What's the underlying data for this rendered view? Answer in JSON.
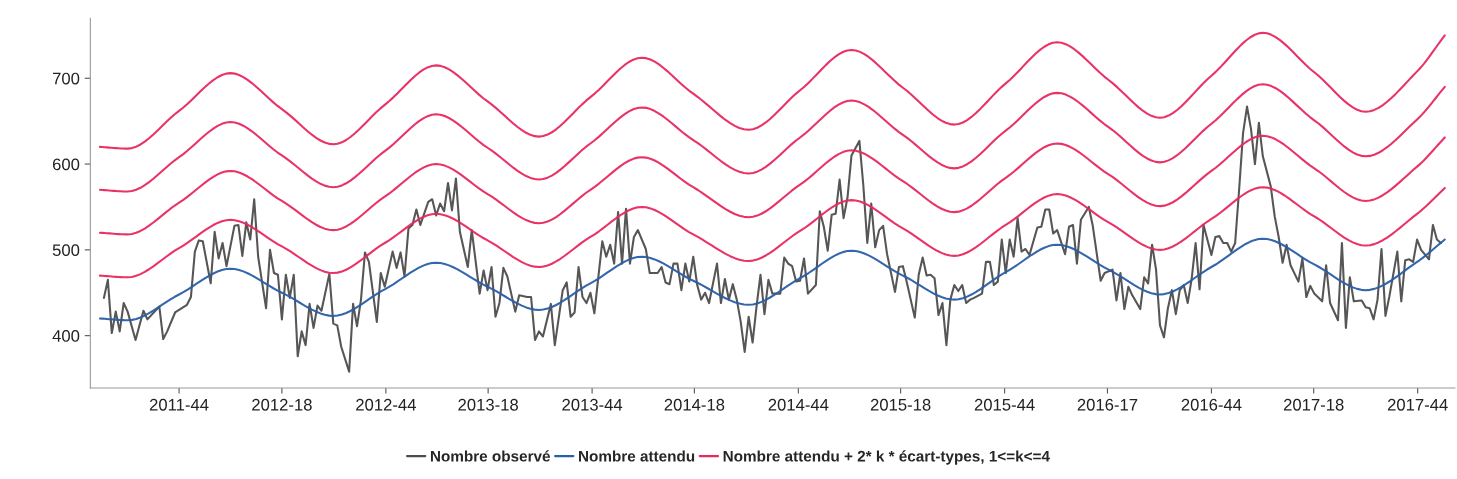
{
  "chart_data": {
    "type": "line",
    "xlim": [
      "2011-05-28",
      "2018-01-06"
    ],
    "ylim": [
      339,
      770
    ],
    "xticks": [
      {
        "value": "2011-11-01",
        "label": "2011-44"
      },
      {
        "value": "2012-05-01",
        "label": "2012-18"
      },
      {
        "value": "2012-11-01",
        "label": "2012-44"
      },
      {
        "value": "2013-05-01",
        "label": "2013-18"
      },
      {
        "value": "2013-11-01",
        "label": "2013-44"
      },
      {
        "value": "2014-05-01",
        "label": "2014-18"
      },
      {
        "value": "2014-11-01",
        "label": "2014-44"
      },
      {
        "value": "2015-05-01",
        "label": "2015-18"
      },
      {
        "value": "2015-11-01",
        "label": "2015-44"
      },
      {
        "value": "2016-05-01",
        "label": "2016-17"
      },
      {
        "value": "2016-11-01",
        "label": "2016-44"
      },
      {
        "value": "2017-05-01",
        "label": "2017-18"
      },
      {
        "value": "2017-11-01",
        "label": "2017-44"
      }
    ],
    "yticks": [
      400,
      500,
      600,
      700
    ],
    "grid": false,
    "legend": "bottom",
    "marker": "none",
    "line_style": "solid",
    "series": [
      {
        "name": "Nombre observé",
        "color": "#4d4d4d",
        "x": [
          "2011-06-21",
          "2011-06-28",
          "2011-07-05",
          "2011-07-12",
          "2011-07-19",
          "2011-07-26",
          "2011-08-02",
          "2011-08-16",
          "2011-08-30",
          "2011-09-06",
          "2011-09-27",
          "2011-10-04",
          "2011-10-11",
          "2011-10-25",
          "2011-11-15",
          "2011-11-22",
          "2011-11-29",
          "2011-12-06",
          "2011-12-13",
          "2011-12-27",
          "2012-01-03",
          "2012-01-10",
          "2012-01-17",
          "2012-01-24",
          "2012-02-07",
          "2012-02-14",
          "2012-02-21",
          "2012-02-28",
          "2012-03-06",
          "2012-03-13",
          "2012-03-20",
          "2012-04-03",
          "2012-04-10",
          "2012-04-17",
          "2012-04-24",
          "2012-05-01",
          "2012-05-08",
          "2012-05-15",
          "2012-05-22",
          "2012-05-29",
          "2012-06-05",
          "2012-06-12",
          "2012-06-19",
          "2012-06-26",
          "2012-07-03",
          "2012-07-10",
          "2012-07-24",
          "2012-07-31",
          "2012-08-07",
          "2012-08-14",
          "2012-08-28",
          "2012-09-04",
          "2012-09-11",
          "2012-09-18",
          "2012-09-25",
          "2012-10-02",
          "2012-10-16",
          "2012-10-23",
          "2012-10-30",
          "2012-11-13",
          "2012-11-20",
          "2012-11-27",
          "2012-12-04",
          "2012-12-11",
          "2012-12-18",
          "2012-12-25",
          "2013-01-01",
          "2013-01-15",
          "2013-01-22",
          "2013-01-29",
          "2013-02-05",
          "2013-02-12",
          "2013-02-19",
          "2013-02-26",
          "2013-03-05",
          "2013-03-12",
          "2013-03-26",
          "2013-04-02",
          "2013-04-16",
          "2013-04-23",
          "2013-04-30",
          "2013-05-07",
          "2013-05-14",
          "2013-05-21",
          "2013-05-28",
          "2013-06-04",
          "2013-06-18",
          "2013-06-25",
          "2013-07-09",
          "2013-07-16",
          "2013-07-23",
          "2013-07-30",
          "2013-08-06",
          "2013-08-20",
          "2013-08-27",
          "2013-09-10",
          "2013-09-17",
          "2013-09-24",
          "2013-10-01",
          "2013-10-08",
          "2013-10-15",
          "2013-10-22",
          "2013-10-29",
          "2013-11-05",
          "2013-11-19",
          "2013-11-26",
          "2013-12-03",
          "2013-12-10",
          "2013-12-17",
          "2013-12-24",
          "2013-12-31",
          "2014-01-07",
          "2014-01-14",
          "2014-01-21",
          "2014-02-04",
          "2014-02-11",
          "2014-02-25",
          "2014-03-04",
          "2014-03-11",
          "2014-03-18",
          "2014-03-25",
          "2014-04-01",
          "2014-04-08",
          "2014-04-15",
          "2014-04-22",
          "2014-04-29",
          "2014-05-06",
          "2014-05-13",
          "2014-05-20",
          "2014-05-27",
          "2014-06-10",
          "2014-06-17",
          "2014-06-24",
          "2014-07-01",
          "2014-07-08",
          "2014-07-15",
          "2014-07-22",
          "2014-07-29",
          "2014-08-05",
          "2014-08-12",
          "2014-08-19",
          "2014-08-26",
          "2014-09-02",
          "2014-09-09",
          "2014-09-16",
          "2014-09-30",
          "2014-10-07",
          "2014-10-14",
          "2014-10-21",
          "2014-10-28",
          "2014-11-04",
          "2014-11-11",
          "2014-11-18",
          "2014-12-02",
          "2014-12-09",
          "2014-12-16",
          "2014-12-23",
          "2014-12-30",
          "2015-01-06",
          "2015-01-13",
          "2015-01-20",
          "2015-01-27",
          "2015-02-03",
          "2015-02-17",
          "2015-02-24",
          "2015-03-03",
          "2015-03-10",
          "2015-03-17",
          "2015-03-24",
          "2015-03-31",
          "2015-04-07",
          "2015-04-21",
          "2015-04-28",
          "2015-05-05",
          "2015-05-12",
          "2015-05-26",
          "2015-06-02",
          "2015-06-09",
          "2015-06-16",
          "2015-06-23",
          "2015-06-30",
          "2015-07-07",
          "2015-07-14",
          "2015-07-21",
          "2015-07-28",
          "2015-08-04",
          "2015-08-11",
          "2015-08-18",
          "2015-08-25",
          "2015-09-01",
          "2015-09-08",
          "2015-09-22",
          "2015-09-29",
          "2015-10-06",
          "2015-10-13",
          "2015-10-20",
          "2015-10-27",
          "2015-11-03",
          "2015-11-10",
          "2015-11-17",
          "2015-11-24",
          "2015-12-01",
          "2015-12-08",
          "2015-12-15",
          "2015-12-29",
          "2016-01-05",
          "2016-01-12",
          "2016-01-19",
          "2016-01-26",
          "2016-02-02",
          "2016-02-16",
          "2016-02-23",
          "2016-03-01",
          "2016-03-08",
          "2016-03-15",
          "2016-03-29",
          "2016-04-05",
          "2016-04-19",
          "2016-04-26",
          "2016-05-10",
          "2016-05-17",
          "2016-05-24",
          "2016-05-31",
          "2016-06-07",
          "2016-06-14",
          "2016-06-28",
          "2016-07-05",
          "2016-07-12",
          "2016-07-19",
          "2016-07-26",
          "2016-08-02",
          "2016-08-09",
          "2016-08-16",
          "2016-08-23",
          "2016-08-30",
          "2016-09-06",
          "2016-09-13",
          "2016-09-20",
          "2016-09-27",
          "2016-10-04",
          "2016-10-11",
          "2016-10-18",
          "2016-11-01",
          "2016-11-08",
          "2016-11-15",
          "2016-11-22",
          "2016-11-29",
          "2016-12-06",
          "2016-12-13",
          "2016-12-20",
          "2016-12-27",
          "2017-01-03",
          "2017-01-10",
          "2017-01-17",
          "2017-01-24",
          "2017-01-31",
          "2017-02-14",
          "2017-02-21",
          "2017-02-28",
          "2017-03-07",
          "2017-03-14",
          "2017-03-21",
          "2017-04-04",
          "2017-04-11",
          "2017-04-18",
          "2017-04-25",
          "2017-05-02",
          "2017-05-16",
          "2017-05-23",
          "2017-05-30",
          "2017-06-13",
          "2017-06-20",
          "2017-06-27",
          "2017-07-04",
          "2017-07-11",
          "2017-07-25",
          "2017-08-01",
          "2017-08-08",
          "2017-08-15",
          "2017-08-22",
          "2017-08-29",
          "2017-09-05",
          "2017-09-12",
          "2017-09-26",
          "2017-10-03",
          "2017-10-10",
          "2017-10-17",
          "2017-10-24",
          "2017-10-31",
          "2017-11-07",
          "2017-11-21",
          "2017-11-28",
          "2017-12-05",
          "2017-12-12"
        ],
        "values": [
          444,
          465,
          403,
          428,
          405,
          438,
          428,
          395,
          429,
          419,
          434,
          396,
          405,
          427,
          436,
          445,
          498,
          511,
          510,
          461,
          521,
          490,
          508,
          481,
          528,
          529,
          493,
          532,
          512,
          559,
          492,
          432,
          500,
          473,
          471,
          419,
          471,
          444,
          471,
          376,
          405,
          389,
          437,
          409,
          435,
          429,
          472,
          414,
          412,
          387,
          358,
          437,
          411,
          442,
          497,
          486,
          416,
          473,
          457,
          498,
          479,
          497,
          469,
          525,
          529,
          547,
          529,
          556,
          559,
          540,
          554,
          545,
          578,
          546,
          583,
          521,
          480,
          523,
          449,
          476,
          453,
          480,
          422,
          438,
          479,
          469,
          428,
          447,
          445,
          445,
          395,
          405,
          399,
          437,
          389,
          453,
          462,
          422,
          427,
          480,
          445,
          438,
          450,
          426,
          510,
          492,
          506,
          484,
          544,
          484,
          548,
          484,
          515,
          523,
          501,
          473,
          473,
          480,
          462,
          460,
          484,
          484,
          453,
          484,
          463,
          492,
          459,
          442,
          450,
          438,
          484,
          438,
          466,
          442,
          460,
          442,
          416,
          381,
          422,
          392,
          434,
          471,
          425,
          465,
          449,
          449,
          491,
          484,
          481,
          463,
          464,
          490,
          449,
          459,
          545,
          527,
          499,
          541,
          542,
          582,
          537,
          561,
          610,
          627,
          575,
          508,
          554,
          503,
          523,
          528,
          495,
          451,
          480,
          481,
          462,
          421,
          471,
          491,
          470,
          471,
          467,
          424,
          438,
          389,
          442,
          459,
          452,
          459,
          438,
          442,
          444,
          449,
          486,
          486,
          459,
          463,
          512,
          473,
          512,
          492,
          537,
          498,
          501,
          494,
          526,
          527,
          547,
          547,
          519,
          523,
          495,
          527,
          529,
          484,
          535,
          550,
          528,
          464,
          473,
          477,
          441,
          473,
          431,
          457,
          447,
          431,
          468,
          461,
          506,
          477,
          412,
          398,
          432,
          453,
          425,
          453,
          459,
          438,
          466,
          508,
          454,
          529,
          494,
          515,
          516,
          508,
          508,
          498,
          508,
          570,
          636,
          667,
          641,
          600,
          648,
          609,
          574,
          539,
          515,
          485,
          506,
          482,
          463,
          490,
          445,
          458,
          449,
          440,
          482,
          438,
          418,
          508,
          409,
          468,
          440,
          441,
          433,
          432,
          419,
          442,
          501,
          423,
          446,
          498,
          440,
          488,
          489,
          486,
          512,
          500,
          489,
          529,
          512,
          508
        ]
      },
      {
        "name": "Nombre attendu",
        "color": "#2a5ea8",
        "x": [
          "2011-06-14",
          "2011-08-02",
          "2011-11-01",
          "2012-01-31",
          "2012-05-01",
          "2012-07-31",
          "2012-10-30",
          "2013-01-29",
          "2013-04-30",
          "2013-07-30",
          "2013-10-29",
          "2014-01-28",
          "2014-04-29",
          "2014-08-05",
          "2014-11-04",
          "2015-02-03",
          "2015-05-05",
          "2015-08-04",
          "2015-11-03",
          "2016-02-02",
          "2016-05-03",
          "2016-08-02",
          "2016-11-01",
          "2017-01-31",
          "2017-05-02",
          "2017-08-01",
          "2017-10-31",
          "2017-12-19"
        ],
        "values": [
          420,
          418,
          448,
          478,
          450,
          423,
          454,
          485,
          457,
          430,
          461,
          492,
          464,
          436,
          467,
          499,
          470,
          442,
          474,
          506,
          477,
          448,
          480,
          513,
          483,
          453,
          486,
          512
        ]
      },
      {
        "name": "Nombre attendu + 2* k * écart-types, 1<=k<=4",
        "color": "#e8285e",
        "x": [
          "2011-06-14",
          "2011-08-02",
          "2011-11-01",
          "2012-01-31",
          "2012-05-01",
          "2012-07-31",
          "2012-10-30",
          "2013-01-29",
          "2013-04-30",
          "2013-07-30",
          "2013-10-29",
          "2014-01-28",
          "2014-04-29",
          "2014-08-05",
          "2014-11-04",
          "2015-02-03",
          "2015-05-05",
          "2015-08-04",
          "2015-11-03",
          "2016-02-02",
          "2016-05-03",
          "2016-08-02",
          "2016-11-01",
          "2017-01-31",
          "2017-05-02",
          "2017-08-01",
          "2017-10-31",
          "2017-12-19"
        ],
        "values": [
          470,
          468,
          502,
          535,
          504,
          473,
          508,
          542,
          511,
          480,
          515,
          550,
          518,
          487,
          522,
          558,
          525,
          493,
          529,
          565,
          532,
          500,
          536,
          573,
          539,
          505,
          542,
          572
        ]
      },
      {
        "color": "#e8285e",
        "x": [
          "2011-06-14",
          "2011-08-02",
          "2011-11-01",
          "2012-01-31",
          "2012-05-01",
          "2012-07-31",
          "2012-10-30",
          "2013-01-29",
          "2013-04-30",
          "2013-07-30",
          "2013-10-29",
          "2014-01-28",
          "2014-04-29",
          "2014-08-05",
          "2014-11-04",
          "2015-02-03",
          "2015-05-05",
          "2015-08-04",
          "2015-11-03",
          "2016-02-02",
          "2016-05-03",
          "2016-08-02",
          "2016-11-01",
          "2017-01-31",
          "2017-05-02",
          "2017-08-01",
          "2017-10-31",
          "2017-12-19"
        ],
        "values": [
          520,
          518,
          555,
          592,
          557,
          523,
          562,
          600,
          565,
          531,
          570,
          608,
          573,
          538,
          576,
          616,
          580,
          544,
          584,
          624,
          588,
          551,
          592,
          633,
          595,
          557,
          597,
          631
        ]
      },
      {
        "color": "#e8285e",
        "x": [
          "2011-06-14",
          "2011-08-02",
          "2011-11-01",
          "2012-01-31",
          "2012-05-01",
          "2012-07-31",
          "2012-10-30",
          "2013-01-29",
          "2013-04-30",
          "2013-07-30",
          "2013-10-29",
          "2014-01-28",
          "2014-04-29",
          "2014-08-05",
          "2014-11-04",
          "2015-02-03",
          "2015-05-05",
          "2015-08-04",
          "2015-11-03",
          "2016-02-02",
          "2016-05-03",
          "2016-08-02",
          "2016-11-01",
          "2017-01-31",
          "2017-05-02",
          "2017-08-01",
          "2017-10-31",
          "2017-12-19"
        ],
        "values": [
          570,
          568,
          608,
          649,
          610,
          573,
          615,
          658,
          619,
          582,
          624,
          666,
          628,
          589,
          631,
          674,
          634,
          595,
          639,
          683,
          643,
          602,
          647,
          693,
          651,
          609,
          652,
          690
        ]
      },
      {
        "color": "#e8285e",
        "x": [
          "2011-06-14",
          "2011-08-02",
          "2011-11-01",
          "2012-01-31",
          "2012-05-01",
          "2012-07-31",
          "2012-10-30",
          "2013-01-29",
          "2013-04-30",
          "2013-07-30",
          "2013-10-29",
          "2014-01-28",
          "2014-04-29",
          "2014-08-05",
          "2014-11-04",
          "2015-02-03",
          "2015-05-05",
          "2015-08-04",
          "2015-11-03",
          "2016-02-02",
          "2016-05-03",
          "2016-08-02",
          "2016-11-01",
          "2017-01-31",
          "2017-05-02",
          "2017-08-01",
          "2017-10-31",
          "2017-12-19"
        ],
        "values": [
          620,
          618,
          662,
          706,
          664,
          623,
          669,
          715,
          673,
          632,
          678,
          724,
          682,
          640,
          686,
          733,
          689,
          646,
          694,
          742,
          698,
          654,
          703,
          753,
          707,
          661,
          708,
          750
        ]
      }
    ]
  }
}
